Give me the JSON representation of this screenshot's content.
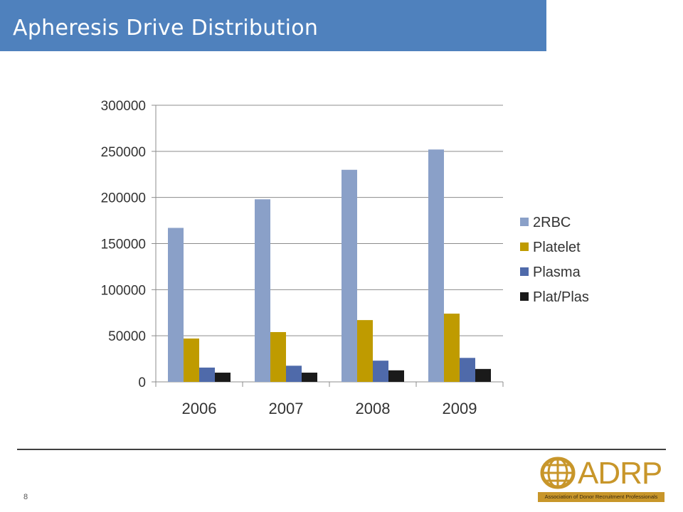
{
  "slide": {
    "title": "Apheresis Drive Distribution",
    "slide_number": "8"
  },
  "logo": {
    "name": "ADRP",
    "tagline": "Association of Donor Recruitment Professionals"
  },
  "colors": {
    "title_bar": "#4f81bd",
    "2RBC": "#8aa0c8",
    "Platelet": "#bf9b00",
    "Plasma": "#4f6aaa",
    "Plat/Plas": "#1a1a1a",
    "logo": "#c8962a"
  },
  "chart_data": {
    "type": "bar",
    "categories": [
      "2006",
      "2007",
      "2008",
      "2009"
    ],
    "series": [
      {
        "name": "2RBC",
        "values": [
          167000,
          198000,
          230000,
          252000
        ]
      },
      {
        "name": "Platelet",
        "values": [
          47000,
          54000,
          67000,
          74000
        ]
      },
      {
        "name": "Plasma",
        "values": [
          15500,
          17500,
          23000,
          26000
        ]
      },
      {
        "name": "Plat/Plas",
        "values": [
          10000,
          10000,
          12500,
          14000
        ]
      }
    ],
    "yticks": [
      "0",
      "50000",
      "100000",
      "150000",
      "200000",
      "250000",
      "300000"
    ],
    "ylim": [
      0,
      300000
    ],
    "grid": true,
    "legend_position": "right"
  }
}
